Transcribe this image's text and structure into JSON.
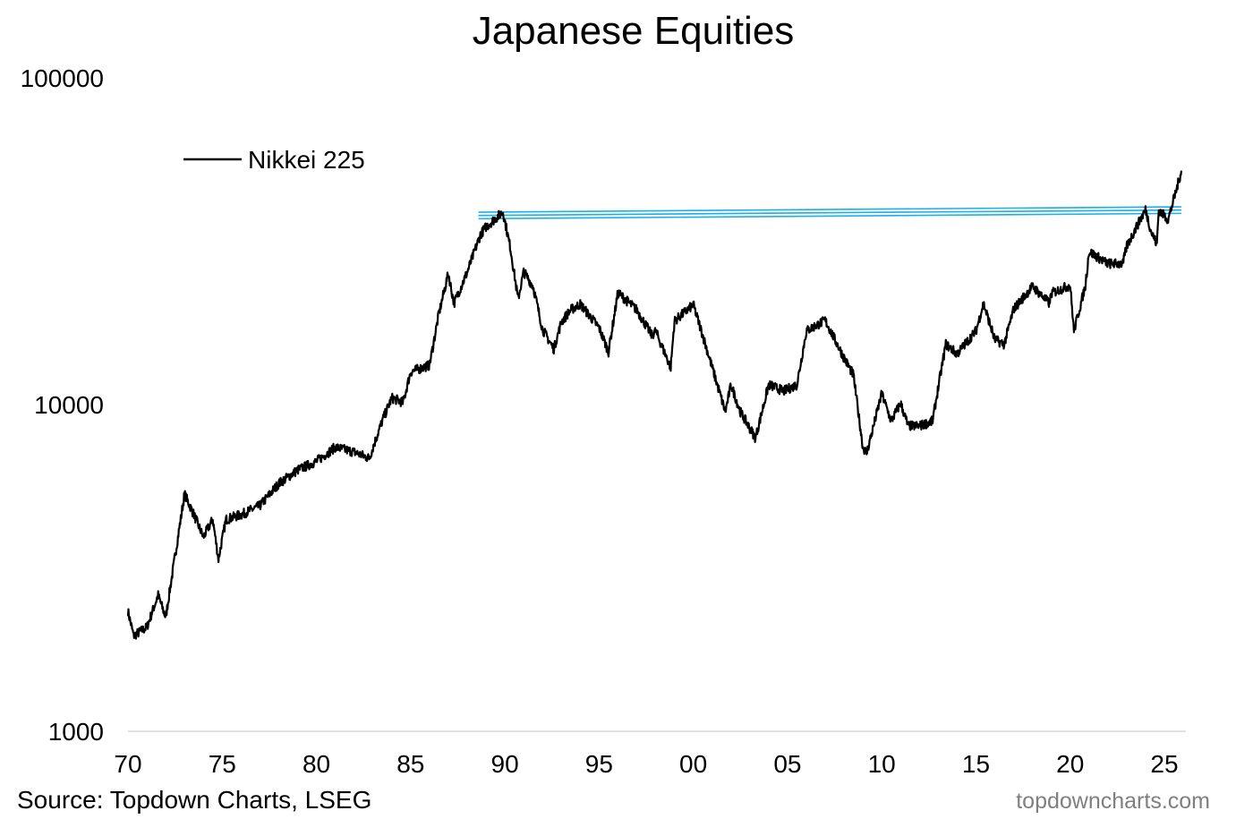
{
  "chart_data": {
    "type": "line",
    "title": "Japanese Equities",
    "y_scale": "log",
    "ylim": [
      1000,
      100000
    ],
    "y_ticks": [
      {
        "value": 1000,
        "label": "1000"
      },
      {
        "value": 10000,
        "label": "10000"
      },
      {
        "value": 100000,
        "label": "100000"
      }
    ],
    "xlim": [
      1970,
      2025.9
    ],
    "x_ticks": [
      {
        "value": 1970,
        "label": "70"
      },
      {
        "value": 1975,
        "label": "75"
      },
      {
        "value": 1980,
        "label": "80"
      },
      {
        "value": 1985,
        "label": "85"
      },
      {
        "value": 1990,
        "label": "90"
      },
      {
        "value": 1995,
        "label": "95"
      },
      {
        "value": 2000,
        "label": "00"
      },
      {
        "value": 2005,
        "label": "05"
      },
      {
        "value": 2010,
        "label": "10"
      },
      {
        "value": 2015,
        "label": "15"
      },
      {
        "value": 2020,
        "label": "20"
      },
      {
        "value": 2025,
        "label": "25"
      }
    ],
    "legend": {
      "position": "top-left"
    },
    "grid": false,
    "series": [
      {
        "name": "Nikkei 225",
        "color": "#000000",
        "x": [
          1970.0,
          1970.3,
          1971.0,
          1971.6,
          1972.0,
          1973.0,
          1973.5,
          1974.0,
          1974.5,
          1974.8,
          1975.2,
          1976.0,
          1977.0,
          1978.0,
          1979.0,
          1980.0,
          1981.0,
          1982.0,
          1982.8,
          1983.5,
          1984.0,
          1984.6,
          1985.0,
          1986.0,
          1986.5,
          1987.0,
          1987.3,
          1988.0,
          1988.7,
          1989.0,
          1989.9,
          1990.3,
          1990.7,
          1991.0,
          1991.5,
          1992.0,
          1992.6,
          1993.0,
          1993.5,
          1994.0,
          1995.0,
          1995.5,
          1996.0,
          1997.0,
          1997.8,
          1998.0,
          1998.8,
          1999.0,
          2000.0,
          2000.5,
          2001.0,
          2001.7,
          2002.0,
          2002.5,
          2003.3,
          2004.0,
          2004.8,
          2005.5,
          2006.0,
          2007.0,
          2008.0,
          2008.5,
          2009.0,
          2009.2,
          2010.0,
          2010.5,
          2011.0,
          2011.4,
          2012.0,
          2012.7,
          2013.0,
          2013.4,
          2014.0,
          2015.0,
          2015.4,
          2016.0,
          2016.5,
          2017.0,
          2018.0,
          2018.9,
          2019.0,
          2020.0,
          2020.2,
          2020.8,
          2021.0,
          2022.0,
          2022.8,
          2023.0,
          2023.5,
          2024.0,
          2024.3,
          2024.6,
          2024.7,
          2025.2,
          2025.6,
          2025.9
        ],
        "values": [
          2330,
          1960,
          2080,
          2610,
          2230,
          5320,
          4600,
          3930,
          4450,
          3360,
          4450,
          4600,
          4900,
          5730,
          6300,
          6700,
          7400,
          7160,
          6850,
          8930,
          10480,
          10150,
          12600,
          13200,
          19000,
          25200,
          20400,
          25400,
          33100,
          35000,
          38900,
          30000,
          21000,
          25500,
          23000,
          17000,
          14800,
          17900,
          19500,
          20300,
          17200,
          14500,
          22000,
          19500,
          16300,
          16800,
          13000,
          18000,
          20200,
          16300,
          13000,
          9500,
          11500,
          9500,
          7900,
          11500,
          11000,
          11500,
          16800,
          18100,
          13900,
          12300,
          7400,
          7100,
          10800,
          8900,
          10100,
          8600,
          8600,
          8900,
          11300,
          15300,
          14300,
          16800,
          20400,
          15800,
          15300,
          19600,
          23000,
          20400,
          21900,
          23200,
          16800,
          23000,
          29400,
          27000,
          27000,
          30500,
          34800,
          39500,
          33800,
          31000,
          39500,
          36800,
          44600,
          52000
        ]
      }
    ],
    "annotations": [
      {
        "type": "horizontal-lines",
        "color": "#1AAFE8",
        "from_x": 1988.6,
        "to_x": 2025.9,
        "values": [
          38000,
          38900,
          39800
        ]
      }
    ]
  },
  "footer": {
    "source": "Source: Topdown Charts, LSEG",
    "brand": "topdowncharts.com"
  }
}
